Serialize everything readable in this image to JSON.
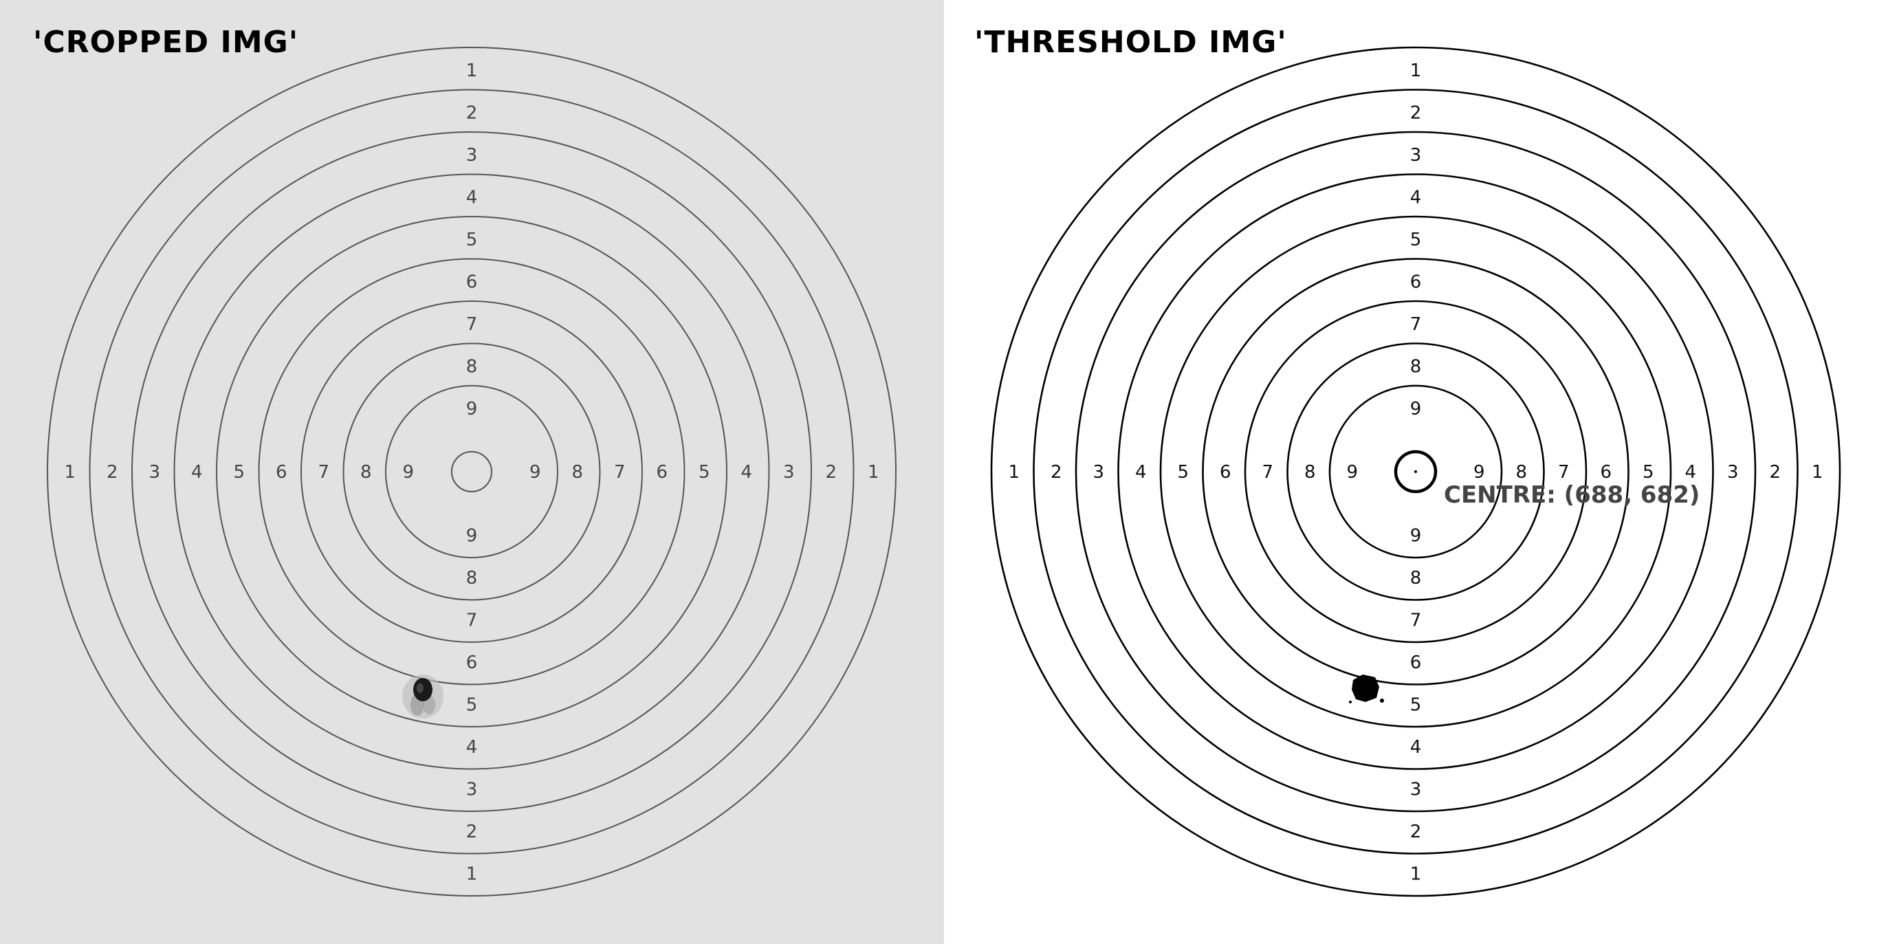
{
  "panels": [
    {
      "title": "'CROPPED IMG'",
      "ring_color": "#555555",
      "label_color": "#444444",
      "background": "#e2e2e2"
    },
    {
      "title": "'THRESHOLD IMG'",
      "ring_color": "#000000",
      "label_color": "#111111",
      "background": "#ffffff",
      "centre_label": "CENTRE: (688, 682)"
    }
  ],
  "ring_labels": [
    "1",
    "2",
    "3",
    "4",
    "5",
    "6",
    "7",
    "8",
    "9"
  ],
  "shot_hole": {
    "ring": "5"
  }
}
